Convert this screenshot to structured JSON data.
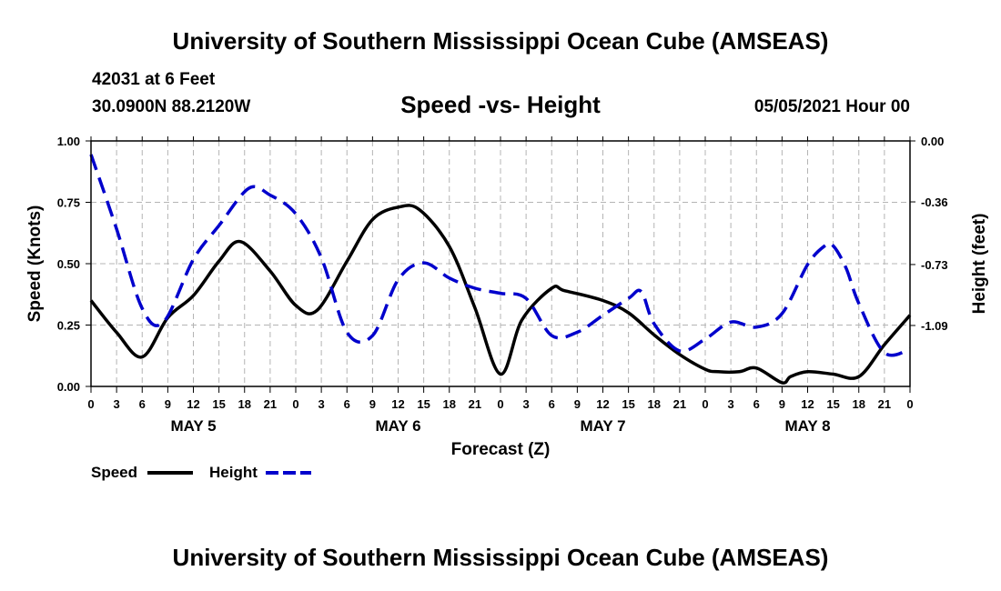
{
  "header": {
    "title": "University of Southern Mississippi Ocean Cube (AMSEAS)",
    "station": "42031 at 6 Feet",
    "coords": "30.0900N  88.2120W",
    "datetime": "05/05/2021 Hour 00"
  },
  "footer": {
    "title": "University of Southern Mississippi Ocean Cube (AMSEAS)"
  },
  "chart_data": {
    "type": "line",
    "title": "Speed -vs- Height",
    "xlabel": "Forecast (Z)",
    "ylabel_left": "Speed (Knots)",
    "ylabel_right": "Height (feet)",
    "x_range": [
      0,
      96
    ],
    "ylim_left": [
      0,
      1.0
    ],
    "ylim_right": [
      -1.45,
      0.0
    ],
    "left_ticks": [
      0,
      0.25,
      0.5,
      0.75,
      1.0
    ],
    "left_tick_labels": [
      "0.00",
      "0.25",
      "0.50",
      "0.75",
      "1.00"
    ],
    "right_ticks": [
      0.0,
      -0.36,
      -0.73,
      -1.09
    ],
    "right_tick_labels": [
      "0.00",
      "-0.36",
      "-0.73",
      "-1.09"
    ],
    "x_ticks": [
      0,
      3,
      6,
      9,
      12,
      15,
      18,
      21,
      24,
      27,
      30,
      33,
      36,
      39,
      42,
      45,
      48,
      51,
      54,
      57,
      60,
      63,
      66,
      69,
      72,
      75,
      78,
      81,
      84,
      87,
      90,
      93,
      96
    ],
    "x_tick_labels": [
      "0",
      "3",
      "6",
      "9",
      "12",
      "15",
      "18",
      "21",
      "0",
      "3",
      "6",
      "9",
      "12",
      "15",
      "18",
      "21",
      "0",
      "3",
      "6",
      "9",
      "12",
      "15",
      "18",
      "21",
      "0",
      "3",
      "6",
      "9",
      "12",
      "15",
      "18",
      "21",
      "0"
    ],
    "day_labels": [
      {
        "x": 12,
        "label": "MAY 5"
      },
      {
        "x": 36,
        "label": "MAY 6"
      },
      {
        "x": 60,
        "label": "MAY 7"
      },
      {
        "x": 84,
        "label": "MAY 8"
      }
    ],
    "grid": true,
    "series": [
      {
        "name": "Speed",
        "axis": "left",
        "color": "#000000",
        "dash": "solid",
        "x": [
          0,
          3,
          6,
          9,
          12,
          15,
          17.5,
          21,
          24,
          26.5,
          30,
          33,
          36,
          38.5,
          42,
          45,
          48,
          50.5,
          54,
          55.5,
          60,
          63,
          66,
          69,
          72,
          73.5,
          76,
          78,
          81,
          82,
          84,
          87,
          90,
          93,
          96
        ],
        "y": [
          0.35,
          0.22,
          0.12,
          0.28,
          0.37,
          0.51,
          0.59,
          0.47,
          0.33,
          0.31,
          0.51,
          0.68,
          0.73,
          0.72,
          0.57,
          0.32,
          0.05,
          0.27,
          0.4,
          0.39,
          0.35,
          0.3,
          0.21,
          0.13,
          0.07,
          0.06,
          0.06,
          0.075,
          0.015,
          0.04,
          0.06,
          0.05,
          0.04,
          0.17,
          0.29
        ]
      },
      {
        "name": "Height",
        "axis": "right",
        "color": "#0000cc",
        "dash": "dashed",
        "x": [
          0,
          3,
          6,
          8.5,
          12,
          15,
          18.5,
          21,
          24,
          27,
          30,
          33,
          36,
          39,
          42,
          45,
          48,
          51,
          54,
          57,
          60,
          63,
          64.5,
          66,
          69,
          72,
          75,
          78,
          81,
          84,
          86,
          87,
          88.5,
          90,
          93,
          96
        ],
        "y": [
          -0.08,
          -0.52,
          -0.99,
          -1.07,
          -0.7,
          -0.5,
          -0.28,
          -0.32,
          -0.43,
          -0.69,
          -1.13,
          -1.15,
          -0.82,
          -0.72,
          -0.81,
          -0.87,
          -0.9,
          -0.93,
          -1.15,
          -1.13,
          -1.03,
          -0.93,
          -0.89,
          -1.08,
          -1.24,
          -1.17,
          -1.07,
          -1.1,
          -1.02,
          -0.73,
          -0.62,
          -0.62,
          -0.75,
          -0.96,
          -1.25,
          -1.23
        ]
      }
    ],
    "legend": [
      {
        "label": "Speed",
        "color": "#000000",
        "dash": "solid"
      },
      {
        "label": "Height",
        "color": "#0000cc",
        "dash": "dashed"
      }
    ]
  }
}
